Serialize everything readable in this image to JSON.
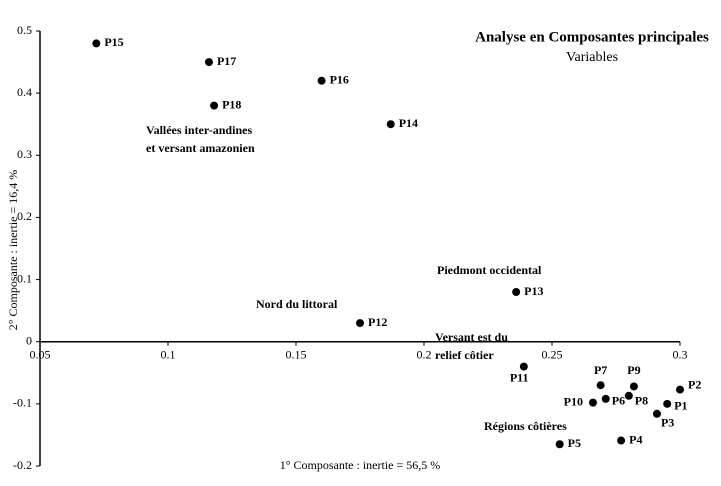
{
  "chart_data": {
    "type": "scatter",
    "title": "Analyse en Composantes principales",
    "subtitle": "Variables",
    "x_label": "1° Composante : inertie = 56,5 %",
    "y_label": "2° Composante : inertie = 16,4 %",
    "annotations": [
      "Vallées inter-andines",
      "et versant amazonien",
      "Piedmont occidental",
      "Nord du littoral",
      "Versant est du",
      "relief côtier",
      "Régions côtières"
    ],
    "series": [
      {
        "name": "Variables",
        "color": "#000000",
        "labels": [
          "P15",
          "P17",
          "P16",
          "P18",
          "P14",
          "P13",
          "P12",
          "P11",
          "P7",
          "P9",
          "P2",
          "P8",
          "P6",
          "P10",
          "P1",
          "P3",
          "P4",
          "P5"
        ],
        "x": [
          0.072,
          0.116,
          0.16,
          0.118,
          0.187,
          0.236,
          0.175,
          0.239,
          0.269,
          0.282,
          0.3,
          0.28,
          0.271,
          0.266,
          0.295,
          0.291,
          0.277,
          0.253
        ],
        "values": [
          0.48,
          0.45,
          0.42,
          0.38,
          0.35,
          0.08,
          0.03,
          -0.04,
          -0.07,
          -0.072,
          -0.077,
          -0.087,
          -0.092,
          -0.098,
          -0.1,
          -0.116,
          -0.159,
          -0.165
        ]
      }
    ],
    "xlim": [
      0.05,
      0.3
    ],
    "xticks": [
      0.05,
      0.1,
      0.15,
      0.2,
      0.25,
      0.3
    ],
    "ylim": [
      -0.2,
      0.5
    ],
    "yticks": [
      0.5,
      0.4,
      0.3,
      0.2,
      0.1,
      0,
      -0.1,
      -0.2
    ]
  }
}
